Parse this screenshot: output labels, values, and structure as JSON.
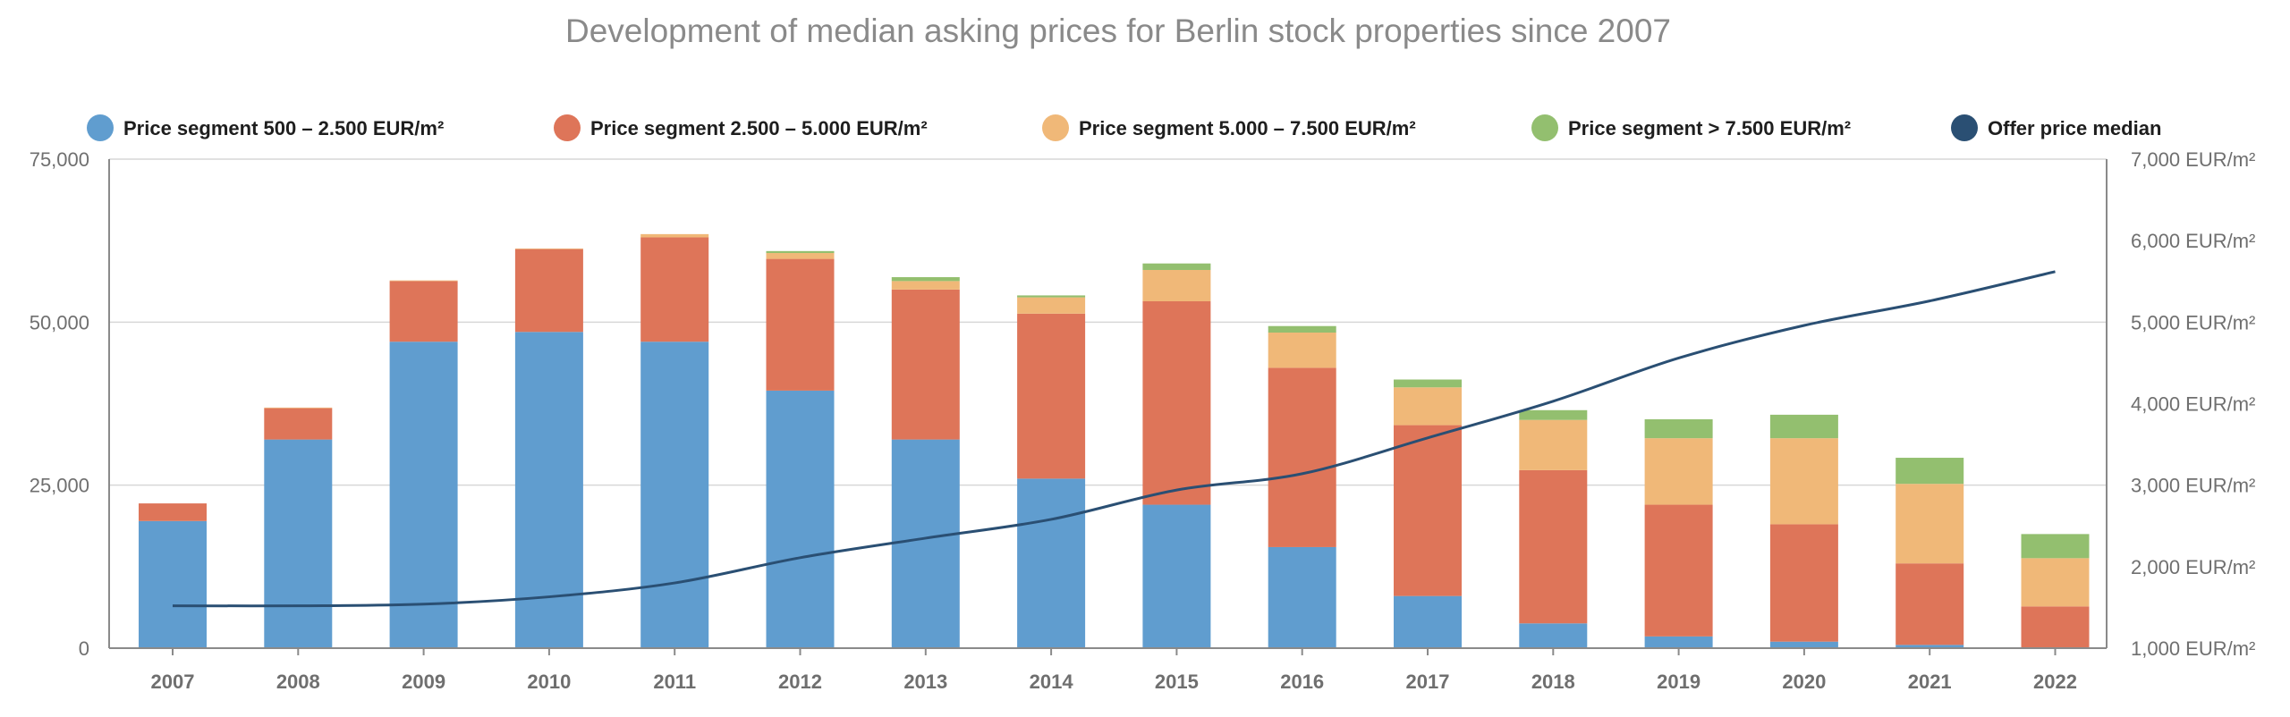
{
  "chart_data": {
    "type": "bar",
    "stacked": true,
    "title": "Development of median asking prices for Berlin stock properties since 2007",
    "categories": [
      "2007",
      "2008",
      "2009",
      "2010",
      "2011",
      "2012",
      "2013",
      "2014",
      "2015",
      "2016",
      "2017",
      "2018",
      "2019",
      "2020",
      "2021",
      "2022"
    ],
    "series": [
      {
        "name": "Price segment 500 – 2.500 EUR/m²",
        "color": "#609dcf",
        "axis": "left",
        "values": [
          19500,
          32000,
          47000,
          48500,
          47000,
          39500,
          32000,
          26000,
          22000,
          15500,
          8000,
          3800,
          1800,
          1000,
          500,
          100
        ]
      },
      {
        "name": "Price segment 2.500 – 5.000 EUR/m²",
        "color": "#de7559",
        "axis": "left",
        "values": [
          2700,
          4800,
          9300,
          12700,
          16000,
          20200,
          23000,
          25300,
          31200,
          27500,
          26200,
          23500,
          20200,
          18000,
          12500,
          6300
        ]
      },
      {
        "name": "Price segment 5.000 – 7.500 EUR/m²",
        "color": "#f0b878",
        "axis": "left",
        "values": [
          0,
          100,
          100,
          100,
          500,
          900,
          1300,
          2500,
          4800,
          5400,
          5800,
          7700,
          10200,
          13200,
          12200,
          7400
        ]
      },
      {
        "name": "Price segment > 7.500 EUR/m²",
        "color": "#93bf6f",
        "axis": "left",
        "values": [
          0,
          0,
          0,
          0,
          0,
          300,
          600,
          300,
          1000,
          1000,
          1200,
          1500,
          2900,
          3600,
          4000,
          3700
        ]
      },
      {
        "name": "Offer price median",
        "color": "#2a4f73",
        "axis": "right",
        "type": "line",
        "values": [
          1520,
          1520,
          1540,
          1630,
          1800,
          2110,
          2350,
          2580,
          2940,
          3140,
          3580,
          4030,
          4560,
          4960,
          5260,
          5620
        ]
      }
    ],
    "y_left": {
      "ylim": [
        0,
        75000
      ],
      "ticks": [
        0,
        25000,
        50000,
        75000
      ],
      "tick_labels": [
        "0",
        "25,000",
        "50,000",
        "75,000"
      ]
    },
    "y_right": {
      "ylim": [
        1000,
        7000
      ],
      "ticks": [
        1000,
        2000,
        3000,
        4000,
        5000,
        6000,
        7000
      ],
      "tick_labels": [
        "1,000 EUR/m²",
        "2,000 EUR/m²",
        "3,000 EUR/m²",
        "4,000 EUR/m²",
        "5,000 EUR/m²",
        "6,000 EUR/m²",
        "7,000 EUR/m²"
      ]
    },
    "grid": true,
    "legend_position": "top"
  }
}
